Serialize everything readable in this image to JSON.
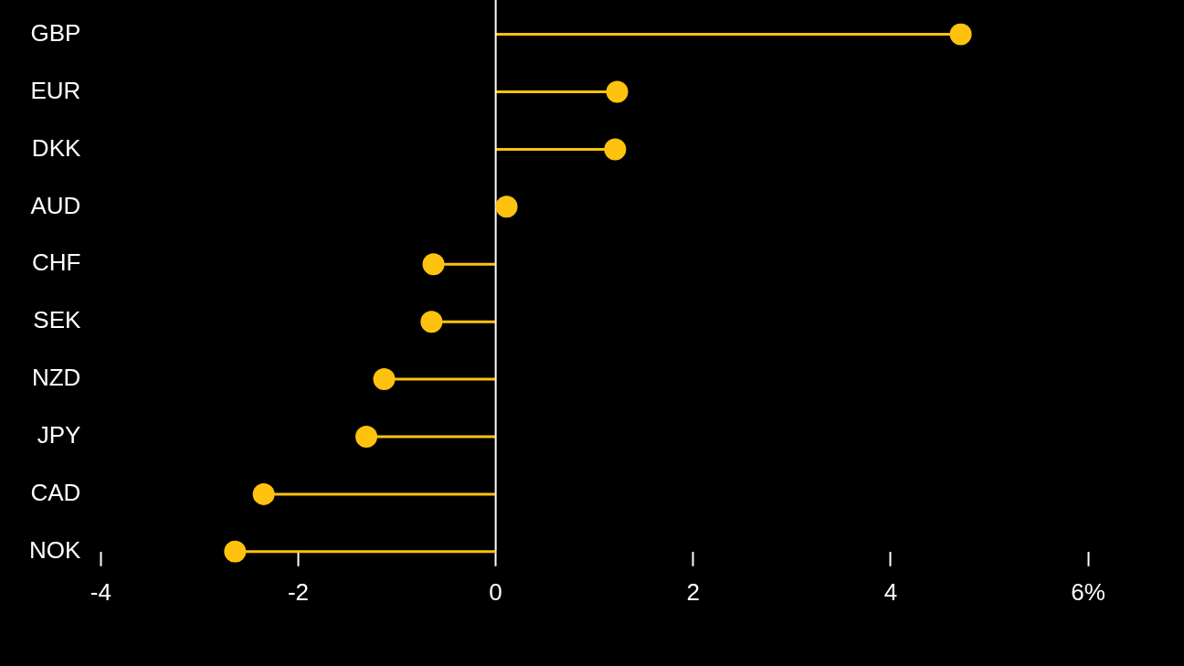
{
  "chart_data": {
    "type": "lollipop",
    "orientation": "horizontal",
    "categories": [
      "GBP",
      "EUR",
      "DKK",
      "AUD",
      "CHF",
      "SEK",
      "NZD",
      "JPY",
      "CAD",
      "NOK"
    ],
    "values": [
      4.71,
      1.23,
      1.21,
      0.11,
      -0.63,
      -0.65,
      -1.13,
      -1.31,
      -2.35,
      -2.64
    ],
    "color": "#ffc20e",
    "xlim": [
      -4,
      6
    ],
    "xticks": [
      -4,
      -2,
      0,
      2,
      4,
      {
        "value": 6,
        "label": "6%"
      }
    ],
    "ref_lines": [
      {
        "axis": "x",
        "value": 0,
        "color": "#ffffff"
      }
    ],
    "grid": false,
    "legend": false,
    "marker": "circle"
  }
}
